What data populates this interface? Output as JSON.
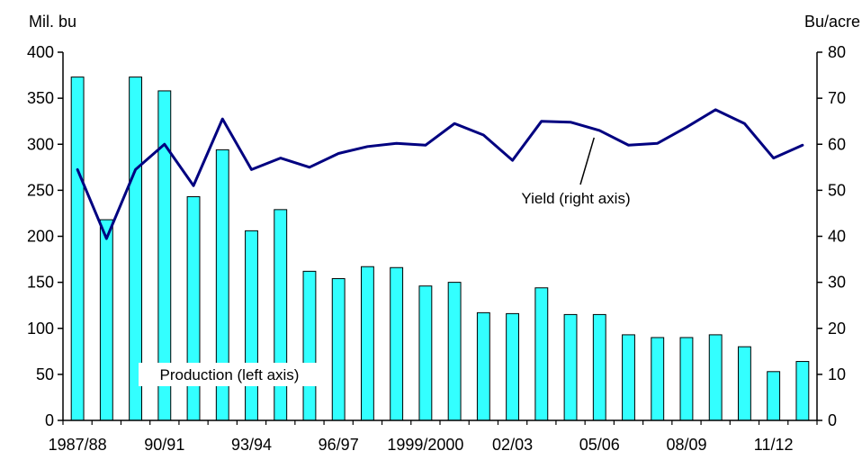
{
  "chart_data": {
    "type": "bar+line",
    "title": "",
    "left_unit": "Mil. bu",
    "right_unit": "Bu/acre",
    "x_tick_labels": [
      {
        "index": 0,
        "label": "1987/88"
      },
      {
        "index": 3,
        "label": "90/91"
      },
      {
        "index": 6,
        "label": "93/94"
      },
      {
        "index": 9,
        "label": "96/97"
      },
      {
        "index": 12,
        "label": "1999/2000"
      },
      {
        "index": 15,
        "label": "02/03"
      },
      {
        "index": 18,
        "label": "05/06"
      },
      {
        "index": 21,
        "label": "08/09"
      },
      {
        "index": 24,
        "label": "11/12"
      }
    ],
    "ylim_left": [
      0,
      400
    ],
    "yticks_left": [
      0,
      50,
      100,
      150,
      200,
      250,
      300,
      350,
      400
    ],
    "ylim_right": [
      0,
      80
    ],
    "yticks_right": [
      0,
      10,
      20,
      30,
      40,
      50,
      60,
      70,
      80
    ],
    "series": [
      {
        "label": "Production (left axis)",
        "kind": "bar",
        "axis": "left",
        "color": "#33ffff",
        "values": [
          373,
          218,
          373,
          358,
          243,
          294,
          206,
          229,
          162,
          154,
          167,
          166,
          146,
          150,
          117,
          116,
          144,
          115,
          115,
          93,
          90,
          90,
          93,
          80,
          53,
          64
        ]
      },
      {
        "label": "Yield (right axis)",
        "kind": "line",
        "axis": "right",
        "color": "#000080",
        "values": [
          54.5,
          39.5,
          54.5,
          60,
          51,
          65.5,
          54.5,
          57,
          55,
          58,
          59.5,
          60.2,
          59.8,
          64.5,
          62,
          56.5,
          65,
          64.8,
          63,
          59.8,
          60.2,
          63.7,
          67.5,
          64.5,
          57,
          59.8
        ]
      }
    ],
    "annotations": [
      {
        "text": "Yield (right axis)",
        "target": "line",
        "target_index": 18
      },
      {
        "text": "Production (left axis)",
        "target": "bars"
      }
    ]
  }
}
